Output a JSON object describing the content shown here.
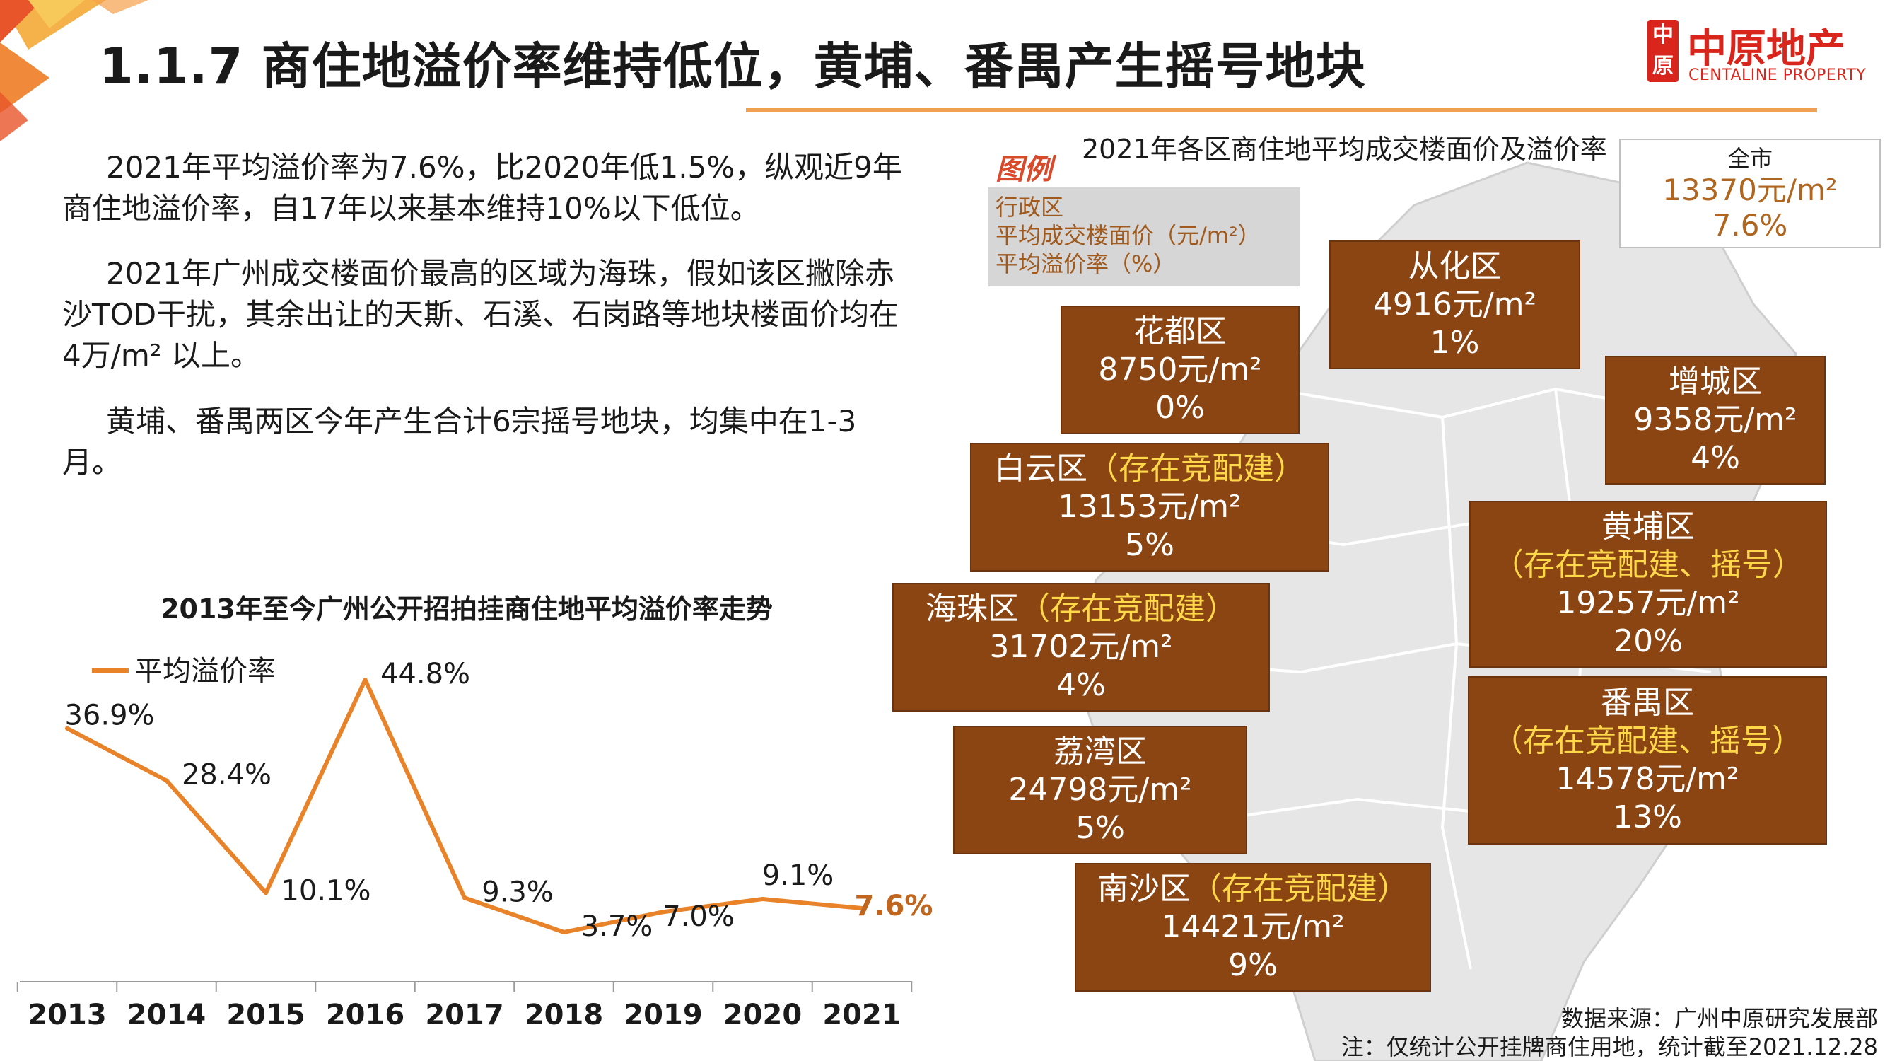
{
  "title": "1.1.7 商住地溢价率维持低位，黄埔、番禺产生摇号地块",
  "logo": {
    "seal": "中原",
    "cn": "中原地产",
    "en": "CENTALINE PROPERTY"
  },
  "paragraphs": [
    "2021年平均溢价率为7.6%，比2020年低1.5%，纵观近9年商住地溢价率，自17年以来基本维持10%以下低位。",
    "2021年广州成交楼面价最高的区域为海珠，假如该区撇除赤沙TOD干扰，其余出让的天斯、石溪、石岗路等地块楼面价均在4万/m² 以上。",
    "黄埔、番禺两区今年产生合计6宗摇号地块，均集中在1-3月。"
  ],
  "chart_data": {
    "type": "line",
    "title": "2013年至今广州公开招拍挂商住地平均溢价率走势",
    "xlabel": "",
    "ylabel": "",
    "categories": [
      "2013",
      "2014",
      "2015",
      "2016",
      "2017",
      "2018",
      "2019",
      "2020",
      "2021"
    ],
    "series": [
      {
        "name": "平均溢价率",
        "values": [
          36.9,
          28.4,
          10.1,
          44.8,
          9.3,
          3.7,
          7.0,
          9.1,
          7.6
        ],
        "labels": [
          "36.9%",
          "28.4%",
          "10.1%",
          "44.8%",
          "9.3%",
          "3.7%",
          "7.0%",
          "9.1%",
          "7.6%"
        ],
        "color": "#e8832a"
      }
    ],
    "ylim": [
      0,
      50
    ],
    "grid": false,
    "legend": "top-left",
    "highlight_color": "#c0661e"
  },
  "map": {
    "title": "2021年各区商住地平均成交楼面价及溢价率",
    "legend": {
      "tag": "图例",
      "lines": [
        "行政区",
        "平均成交楼面价（元/m²）",
        "平均溢价率（%）"
      ]
    },
    "city": {
      "name": "全市",
      "price": "13370元/m²",
      "rate": "7.6%"
    },
    "districts": {
      "conghua": {
        "name": "从化区",
        "note": "",
        "price": "4916元/m²",
        "rate": "1%"
      },
      "huadu": {
        "name": "花都区",
        "note": "",
        "price": "8750元/m²",
        "rate": "0%"
      },
      "zengcheng": {
        "name": "增城区",
        "note": "",
        "price": "9358元/m²",
        "rate": "4%"
      },
      "baiyun": {
        "name": "白云区",
        "note": "（存在竞配建）",
        "price": "13153元/m²",
        "rate": "5%"
      },
      "huangpu": {
        "name": "黄埔区",
        "note": "（存在竞配建、摇号）",
        "price": "19257元/m²",
        "rate": "20%"
      },
      "haizhu": {
        "name": "海珠区",
        "note": "（存在竞配建）",
        "price": "31702元/m²",
        "rate": "4%"
      },
      "panyu": {
        "name": "番禺区",
        "note": "（存在竞配建、摇号）",
        "price": "14578元/m²",
        "rate": "13%"
      },
      "liwan": {
        "name": "荔湾区",
        "note": "",
        "price": "24798元/m²",
        "rate": "5%"
      },
      "nansha": {
        "name": "南沙区",
        "note": "（存在竞配建）",
        "price": "14421元/m²",
        "rate": "9%"
      }
    }
  },
  "source": {
    "line1": "数据来源：广州中原研究发展部",
    "line2": "注：仅统计公开挂牌商住用地，统计截至2021.12.28"
  },
  "colors": {
    "accent_orange": "#e8832a",
    "box_brown": "#8b4513",
    "note_yellow": "#ffd84a",
    "brand_red": "#d9251c"
  }
}
